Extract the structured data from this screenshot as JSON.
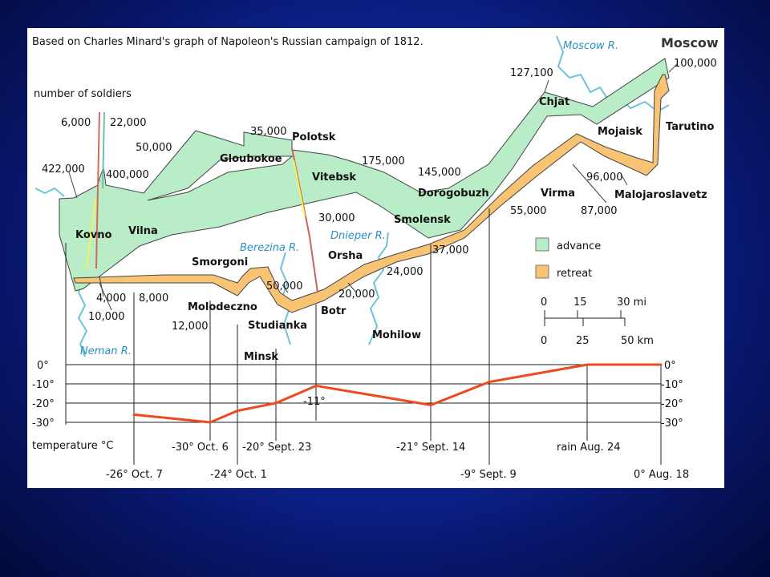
{
  "title": "Based on Charles Minard's graph of Napoleon's Russian campaign of 1812.",
  "moscow_label": "Moscow",
  "legend": {
    "advance": "advance",
    "retreat": "retreat"
  },
  "colors": {
    "advance": "#b8edc8",
    "retreat": "#f8c373",
    "temperature": "#ee4a1f",
    "river": "#6ec3d8",
    "background": "#1029a8"
  },
  "scale": {
    "mi_label": "30 mi",
    "mi_ticks": [
      "0",
      "15"
    ],
    "km_label": "50 km",
    "km_ticks": [
      "0",
      "25"
    ]
  },
  "chart_data": [
    {
      "type": "flow-map",
      "number_of_soldiers_label": "number of soldiers",
      "troop_labels": [
        "422,000",
        "400,000",
        "6,000",
        "22,000",
        "50,000",
        "35,000",
        "175,000",
        "145,000",
        "127,100",
        "100,000",
        "96,000",
        "87,000",
        "55,000",
        "37,000",
        "24,000",
        "30,000",
        "20,000",
        "50,000",
        "12,000",
        "8,000",
        "4,000",
        "10,000"
      ],
      "cities": [
        "Kovno",
        "Vilna",
        "Gloubokoe",
        "Polotsk",
        "Vitebsk",
        "Smolensk",
        "Dorogobuzh",
        "Chjat",
        "Mojaisk",
        "Tarutino",
        "Malojaroslavetz",
        "Virma",
        "Orsha",
        "Mohilow",
        "Botr",
        "Studianka",
        "Minsk",
        "Molodeczno",
        "Smorgoni"
      ],
      "rivers": [
        "Moscow R.",
        "Berezina R.",
        "Dnieper R.",
        "Neman R."
      ]
    },
    {
      "type": "line",
      "ylabel": "temperature °C",
      "yticks": [
        "0°",
        "-10°",
        "-20°",
        "-30°"
      ],
      "right_yticks": [
        "0°",
        "-10°",
        "-20°",
        "-30°"
      ],
      "ylim": [
        -30,
        0
      ],
      "points": [
        {
          "label": "-26° Oct. 7",
          "value": -26
        },
        {
          "label": "-30° Oct. 6",
          "value": -30
        },
        {
          "label": "-24° Oct. 1",
          "value": -24
        },
        {
          "label": "-20° Sept. 23",
          "value": -20
        },
        {
          "label": "-11°",
          "value": -11
        },
        {
          "label": "-21° Sept. 14",
          "value": -21
        },
        {
          "label": "-9° Sept. 9",
          "value": -9
        },
        {
          "label": "rain Aug. 24",
          "value": 0
        },
        {
          "label": "0° Aug. 18",
          "value": 0
        }
      ]
    }
  ]
}
